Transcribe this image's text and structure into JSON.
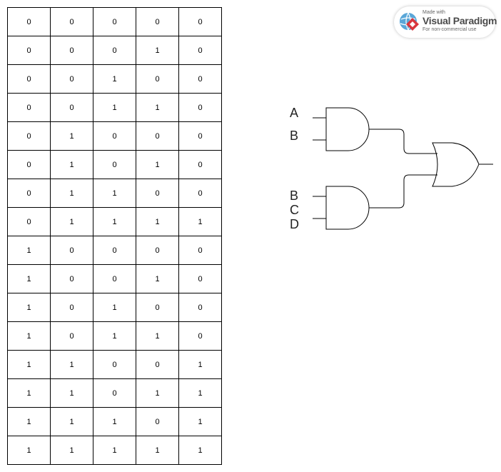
{
  "truth_table": {
    "rows": [
      [
        "0",
        "0",
        "0",
        "0",
        "0"
      ],
      [
        "0",
        "0",
        "0",
        "1",
        "0"
      ],
      [
        "0",
        "0",
        "1",
        "0",
        "0"
      ],
      [
        "0",
        "0",
        "1",
        "1",
        "0"
      ],
      [
        "0",
        "1",
        "0",
        "0",
        "0"
      ],
      [
        "0",
        "1",
        "0",
        "1",
        "0"
      ],
      [
        "0",
        "1",
        "1",
        "0",
        "0"
      ],
      [
        "0",
        "1",
        "1",
        "1",
        "1"
      ],
      [
        "1",
        "0",
        "0",
        "0",
        "0"
      ],
      [
        "1",
        "0",
        "0",
        "1",
        "0"
      ],
      [
        "1",
        "0",
        "1",
        "0",
        "0"
      ],
      [
        "1",
        "0",
        "1",
        "1",
        "0"
      ],
      [
        "1",
        "1",
        "0",
        "0",
        "1"
      ],
      [
        "1",
        "1",
        "0",
        "1",
        "1"
      ],
      [
        "1",
        "1",
        "1",
        "0",
        "1"
      ],
      [
        "1",
        "1",
        "1",
        "1",
        "1"
      ]
    ]
  },
  "circuit": {
    "gate1_inputs": [
      "A",
      "B"
    ],
    "gate2_inputs": [
      "B",
      "C",
      "D"
    ],
    "gate1_type": "and",
    "gate2_type": "and",
    "output_gate_type": "or",
    "stroke_color": "#000000"
  },
  "watermark": {
    "made_with": "Made with",
    "brand": "Visual Paradigm",
    "note": "For non-commercial use",
    "colors": {
      "globe": "#5aa7d8",
      "diamond": "#d9363e"
    }
  }
}
